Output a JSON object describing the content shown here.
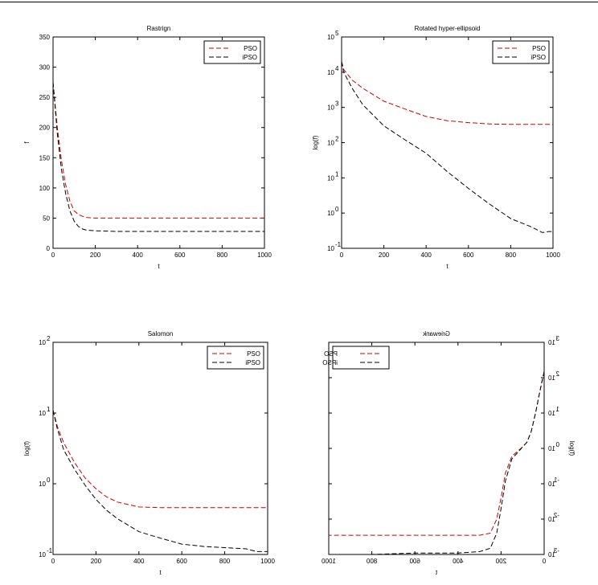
{
  "chart_data": [
    {
      "type": "line",
      "title": "Rastrign",
      "xlabel": "t",
      "ylabel": "f",
      "xlim": [
        0,
        1000
      ],
      "ylim": [
        0,
        350
      ],
      "yscale": "linear",
      "xticks": [
        0,
        200,
        400,
        600,
        800,
        1000
      ],
      "xtick_labels": [
        "0",
        "200",
        "400",
        "600",
        "800",
        "1000"
      ],
      "yticks": [
        0,
        50,
        100,
        150,
        200,
        250,
        300,
        350
      ],
      "ytick_labels": [
        "0",
        "50",
        "100",
        "150",
        "200",
        "250",
        "300",
        "350"
      ],
      "mirrored": false,
      "legend": "top-right",
      "series": [
        {
          "name": "PSO",
          "color": "#cc0000",
          "x": [
            0,
            20,
            40,
            60,
            80,
            100,
            120,
            140,
            160,
            200,
            300,
            400,
            600,
            800,
            1000
          ],
          "y": [
            275,
            200,
            145,
            105,
            78,
            62,
            56,
            53,
            51,
            50,
            50,
            50,
            50,
            50,
            50
          ]
        },
        {
          "name": "iPSO",
          "color": "#000000",
          "x": [
            0,
            20,
            40,
            60,
            80,
            100,
            120,
            140,
            160,
            200,
            300,
            400,
            600,
            800,
            1000
          ],
          "y": [
            275,
            190,
            130,
            90,
            62,
            45,
            36,
            32,
            30,
            29,
            28,
            28,
            28,
            28,
            28
          ]
        }
      ]
    },
    {
      "type": "line",
      "title": "Rotated hyper-ellipsoid",
      "xlabel": "t",
      "ylabel": "log(f)",
      "xlim": [
        0,
        1000
      ],
      "ylim": [
        -1,
        5
      ],
      "yscale": "log",
      "xticks": [
        0,
        200,
        400,
        600,
        800,
        1000
      ],
      "xtick_labels": [
        "0",
        "200",
        "400",
        "600",
        "800",
        "1000"
      ],
      "yticks": [
        -1,
        0,
        1,
        2,
        3,
        4,
        5
      ],
      "ytick_labels": [
        "10",
        "10",
        "10",
        "10",
        "10",
        "10",
        "10"
      ],
      "ytick_exponents": [
        "-1",
        "0",
        "1",
        "2",
        "3",
        "4",
        "5"
      ],
      "mirrored": false,
      "legend": "top-right",
      "series": [
        {
          "name": "PSO",
          "color": "#cc0000",
          "x": [
            0,
            10,
            50,
            100,
            200,
            300,
            400,
            500,
            600,
            700,
            800,
            900,
            1000
          ],
          "y": [
            20000,
            12000,
            6000,
            3500,
            1500,
            900,
            550,
            420,
            370,
            340,
            330,
            330,
            330
          ]
        },
        {
          "name": "iPSO",
          "color": "#000000",
          "x": [
            0,
            10,
            50,
            100,
            200,
            300,
            400,
            500,
            600,
            700,
            800,
            900,
            950,
            980,
            1000
          ],
          "y": [
            20000,
            10000,
            3500,
            1200,
            300,
            120,
            50,
            15,
            5,
            1.8,
            0.7,
            0.4,
            0.28,
            0.3,
            0.3
          ]
        }
      ]
    },
    {
      "type": "line",
      "title": "Salomon",
      "xlabel": "t",
      "ylabel": "log(f)",
      "xlim": [
        0,
        1000
      ],
      "ylim": [
        -1,
        2
      ],
      "yscale": "log",
      "xticks": [
        0,
        200,
        400,
        600,
        800,
        1000
      ],
      "xtick_labels": [
        "0",
        "200",
        "400",
        "600",
        "800",
        "1000"
      ],
      "yticks": [
        -1,
        0,
        1,
        2
      ],
      "ytick_labels": [
        "10",
        "10",
        "10",
        "10"
      ],
      "ytick_exponents": [
        "-1",
        "0",
        "1",
        "2"
      ],
      "mirrored": false,
      "legend": "top-right",
      "series": [
        {
          "name": "PSO",
          "color": "#cc0000",
          "x": [
            0,
            20,
            50,
            100,
            150,
            200,
            250,
            300,
            400,
            500,
            600,
            800,
            1000
          ],
          "y": [
            11,
            6.5,
            3.8,
            2.0,
            1.2,
            0.85,
            0.65,
            0.55,
            0.47,
            0.46,
            0.46,
            0.46,
            0.46
          ]
        },
        {
          "name": "iPSO",
          "color": "#000000",
          "x": [
            0,
            20,
            50,
            100,
            150,
            200,
            250,
            300,
            400,
            500,
            600,
            700,
            800,
            900,
            950,
            1000
          ],
          "y": [
            11,
            6.0,
            3.0,
            1.6,
            0.95,
            0.6,
            0.42,
            0.32,
            0.21,
            0.17,
            0.14,
            0.13,
            0.125,
            0.12,
            0.11,
            0.11
          ]
        }
      ]
    },
    {
      "type": "line",
      "title": "Griewank",
      "xlabel": "t",
      "ylabel": "log(f)",
      "xlim": [
        0,
        1000
      ],
      "ylim": [
        -3,
        3
      ],
      "yscale": "log",
      "xticks": [
        0,
        200,
        400,
        600,
        800,
        1000
      ],
      "xtick_labels": [
        "0",
        "200",
        "400",
        "600",
        "800",
        "1000"
      ],
      "yticks": [
        -3,
        -2,
        -1,
        0,
        1,
        2,
        3
      ],
      "ytick_labels": [
        "10",
        "10",
        "10",
        "10",
        "10",
        "10",
        "10"
      ],
      "ytick_exponents": [
        "-3",
        "-2",
        "-1",
        "0",
        "1",
        "2",
        "3"
      ],
      "mirrored": true,
      "legend": "top-right",
      "series": [
        {
          "name": "PSO",
          "color": "#cc0000",
          "x": [
            0,
            20,
            40,
            60,
            80,
            100,
            150,
            180,
            200,
            220,
            250,
            300,
            400,
            600,
            800,
            1000
          ],
          "y": [
            150,
            40,
            10,
            3,
            1.5,
            1.1,
            0.6,
            0.2,
            0.04,
            0.01,
            0.004,
            0.0035,
            0.0035,
            0.0035,
            0.0035,
            0.0035
          ]
        },
        {
          "name": "iPSO",
          "color": "#000000",
          "x": [
            0,
            20,
            40,
            60,
            80,
            100,
            150,
            180,
            200,
            220,
            250,
            300,
            400,
            600,
            800,
            1000
          ],
          "y": [
            150,
            40,
            10,
            3,
            1.5,
            1.1,
            0.5,
            0.12,
            0.02,
            0.004,
            0.0015,
            0.0012,
            0.0011,
            0.0011,
            0.001,
            0.001
          ]
        }
      ]
    }
  ]
}
